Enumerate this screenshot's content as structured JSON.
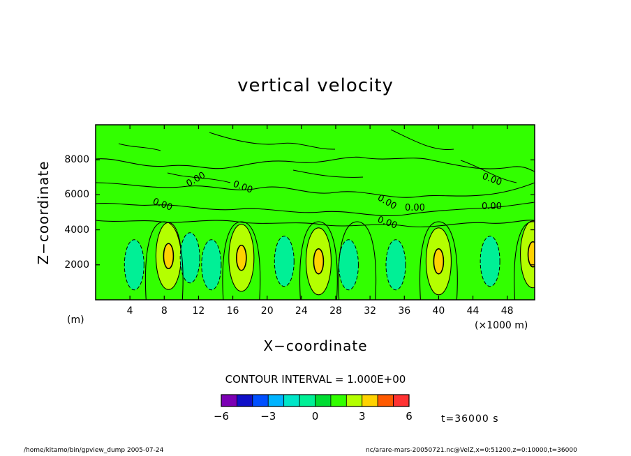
{
  "chart_data": {
    "type": "heatmap",
    "title": "vertical velocity",
    "xlabel": "X−coordinate",
    "ylabel": "Z−coordinate",
    "x_units": "(×1000 m)",
    "y_units": "(m)",
    "xlim": [
      0,
      51.2
    ],
    "ylim": [
      0,
      10000
    ],
    "x_ticks": [
      "4",
      "8",
      "12",
      "16",
      "20",
      "24",
      "28",
      "32",
      "36",
      "40",
      "44",
      "48"
    ],
    "y_ticks": [
      "2000",
      "4000",
      "6000",
      "8000"
    ],
    "contour_interval_text": "CONTOUR INTERVAL = 1.000E+00",
    "contour_label": "0.00",
    "colorbar": {
      "levels": [
        -6,
        -5,
        -4,
        -3,
        -2,
        -1,
        0,
        1,
        2,
        3,
        4,
        5,
        6
      ],
      "tick_labels": [
        "−6",
        "−3",
        "0",
        "3",
        "6"
      ],
      "colors": [
        "#7c00b4",
        "#1010c8",
        "#0050ff",
        "#00b4ff",
        "#00e6c8",
        "#00f096",
        "#00dc32",
        "#32ff00",
        "#b4ff00",
        "#ffd200",
        "#ff5a00",
        "#ff3232",
        "#ffa0a0"
      ]
    },
    "features": [
      {
        "x": 8.5,
        "z": 2500,
        "value": 3
      },
      {
        "x": 17.0,
        "z": 2400,
        "value": 3
      },
      {
        "x": 51.0,
        "z": 2600,
        "value": 3
      },
      {
        "x": 26.0,
        "z": 2200,
        "value": 3
      },
      {
        "x": 40.0,
        "z": 2200,
        "value": 3
      },
      {
        "x": 4.5,
        "z": 2000,
        "value": -1
      },
      {
        "x": 11.0,
        "z": 2400,
        "value": -1
      },
      {
        "x": 13.5,
        "z": 2000,
        "value": -1
      },
      {
        "x": 22.0,
        "z": 2200,
        "value": -1
      },
      {
        "x": 29.5,
        "z": 2000,
        "value": -1
      },
      {
        "x": 35.0,
        "z": 2000,
        "value": -1
      },
      {
        "x": 46.0,
        "z": 2200,
        "value": -1
      }
    ]
  },
  "time_text": "t=36000 s",
  "footer_left": "/home/kitamo/bin/gpview_dump  2005-07-24",
  "footer_right": "nc/arare-mars-20050721.nc@VelZ,x=0:51200,z=0:10000,t=36000"
}
